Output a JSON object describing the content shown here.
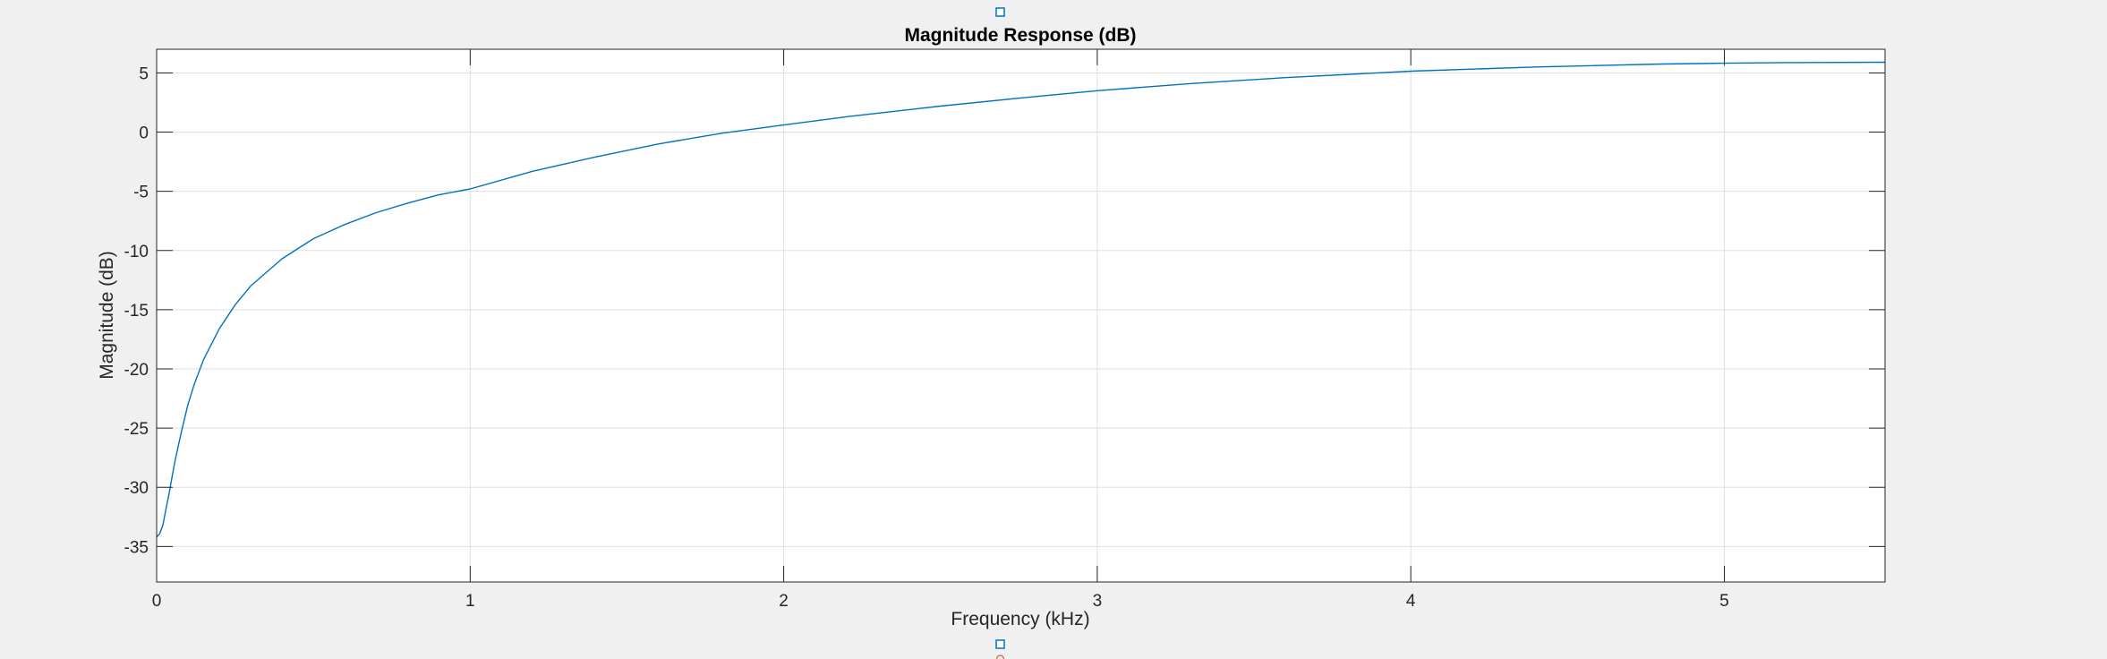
{
  "chart_data": {
    "type": "line",
    "title": "Magnitude Response (dB)",
    "xlabel": "Frequency (kHz)",
    "ylabel": "Magnitude (dB)",
    "xlim": [
      0,
      5.5125
    ],
    "ylim": [
      -38,
      7
    ],
    "xticks": [
      0,
      1,
      2,
      3,
      4,
      5
    ],
    "yticks": [
      5,
      0,
      -5,
      -10,
      -15,
      -20,
      -25,
      -30,
      -35
    ],
    "grid": true,
    "series": [
      {
        "color": "#0072bd",
        "x": [
          0,
          0.01,
          0.02,
          0.03,
          0.04,
          0.05,
          0.06,
          0.08,
          0.1,
          0.12,
          0.15,
          0.2,
          0.25,
          0.3,
          0.4,
          0.5,
          0.6,
          0.7,
          0.8,
          0.9,
          1.0,
          1.2,
          1.4,
          1.6,
          1.8,
          2.0,
          2.2,
          2.5,
          2.8,
          3.0,
          3.3,
          3.6,
          4.0,
          4.4,
          4.8,
          5.0,
          5.2,
          5.5125
        ],
        "y": [
          -34.2,
          -33.9,
          -33.2,
          -31.8,
          -30.5,
          -29.0,
          -27.6,
          -25.2,
          -23.0,
          -21.3,
          -19.2,
          -16.6,
          -14.6,
          -13.0,
          -10.7,
          -9.0,
          -7.8,
          -6.8,
          -6.0,
          -5.3,
          -4.8,
          -3.3,
          -2.1,
          -1.0,
          -0.1,
          0.6,
          1.3,
          2.2,
          3.0,
          3.5,
          4.1,
          4.6,
          5.15,
          5.5,
          5.75,
          5.82,
          5.87,
          5.9
        ]
      }
    ]
  }
}
